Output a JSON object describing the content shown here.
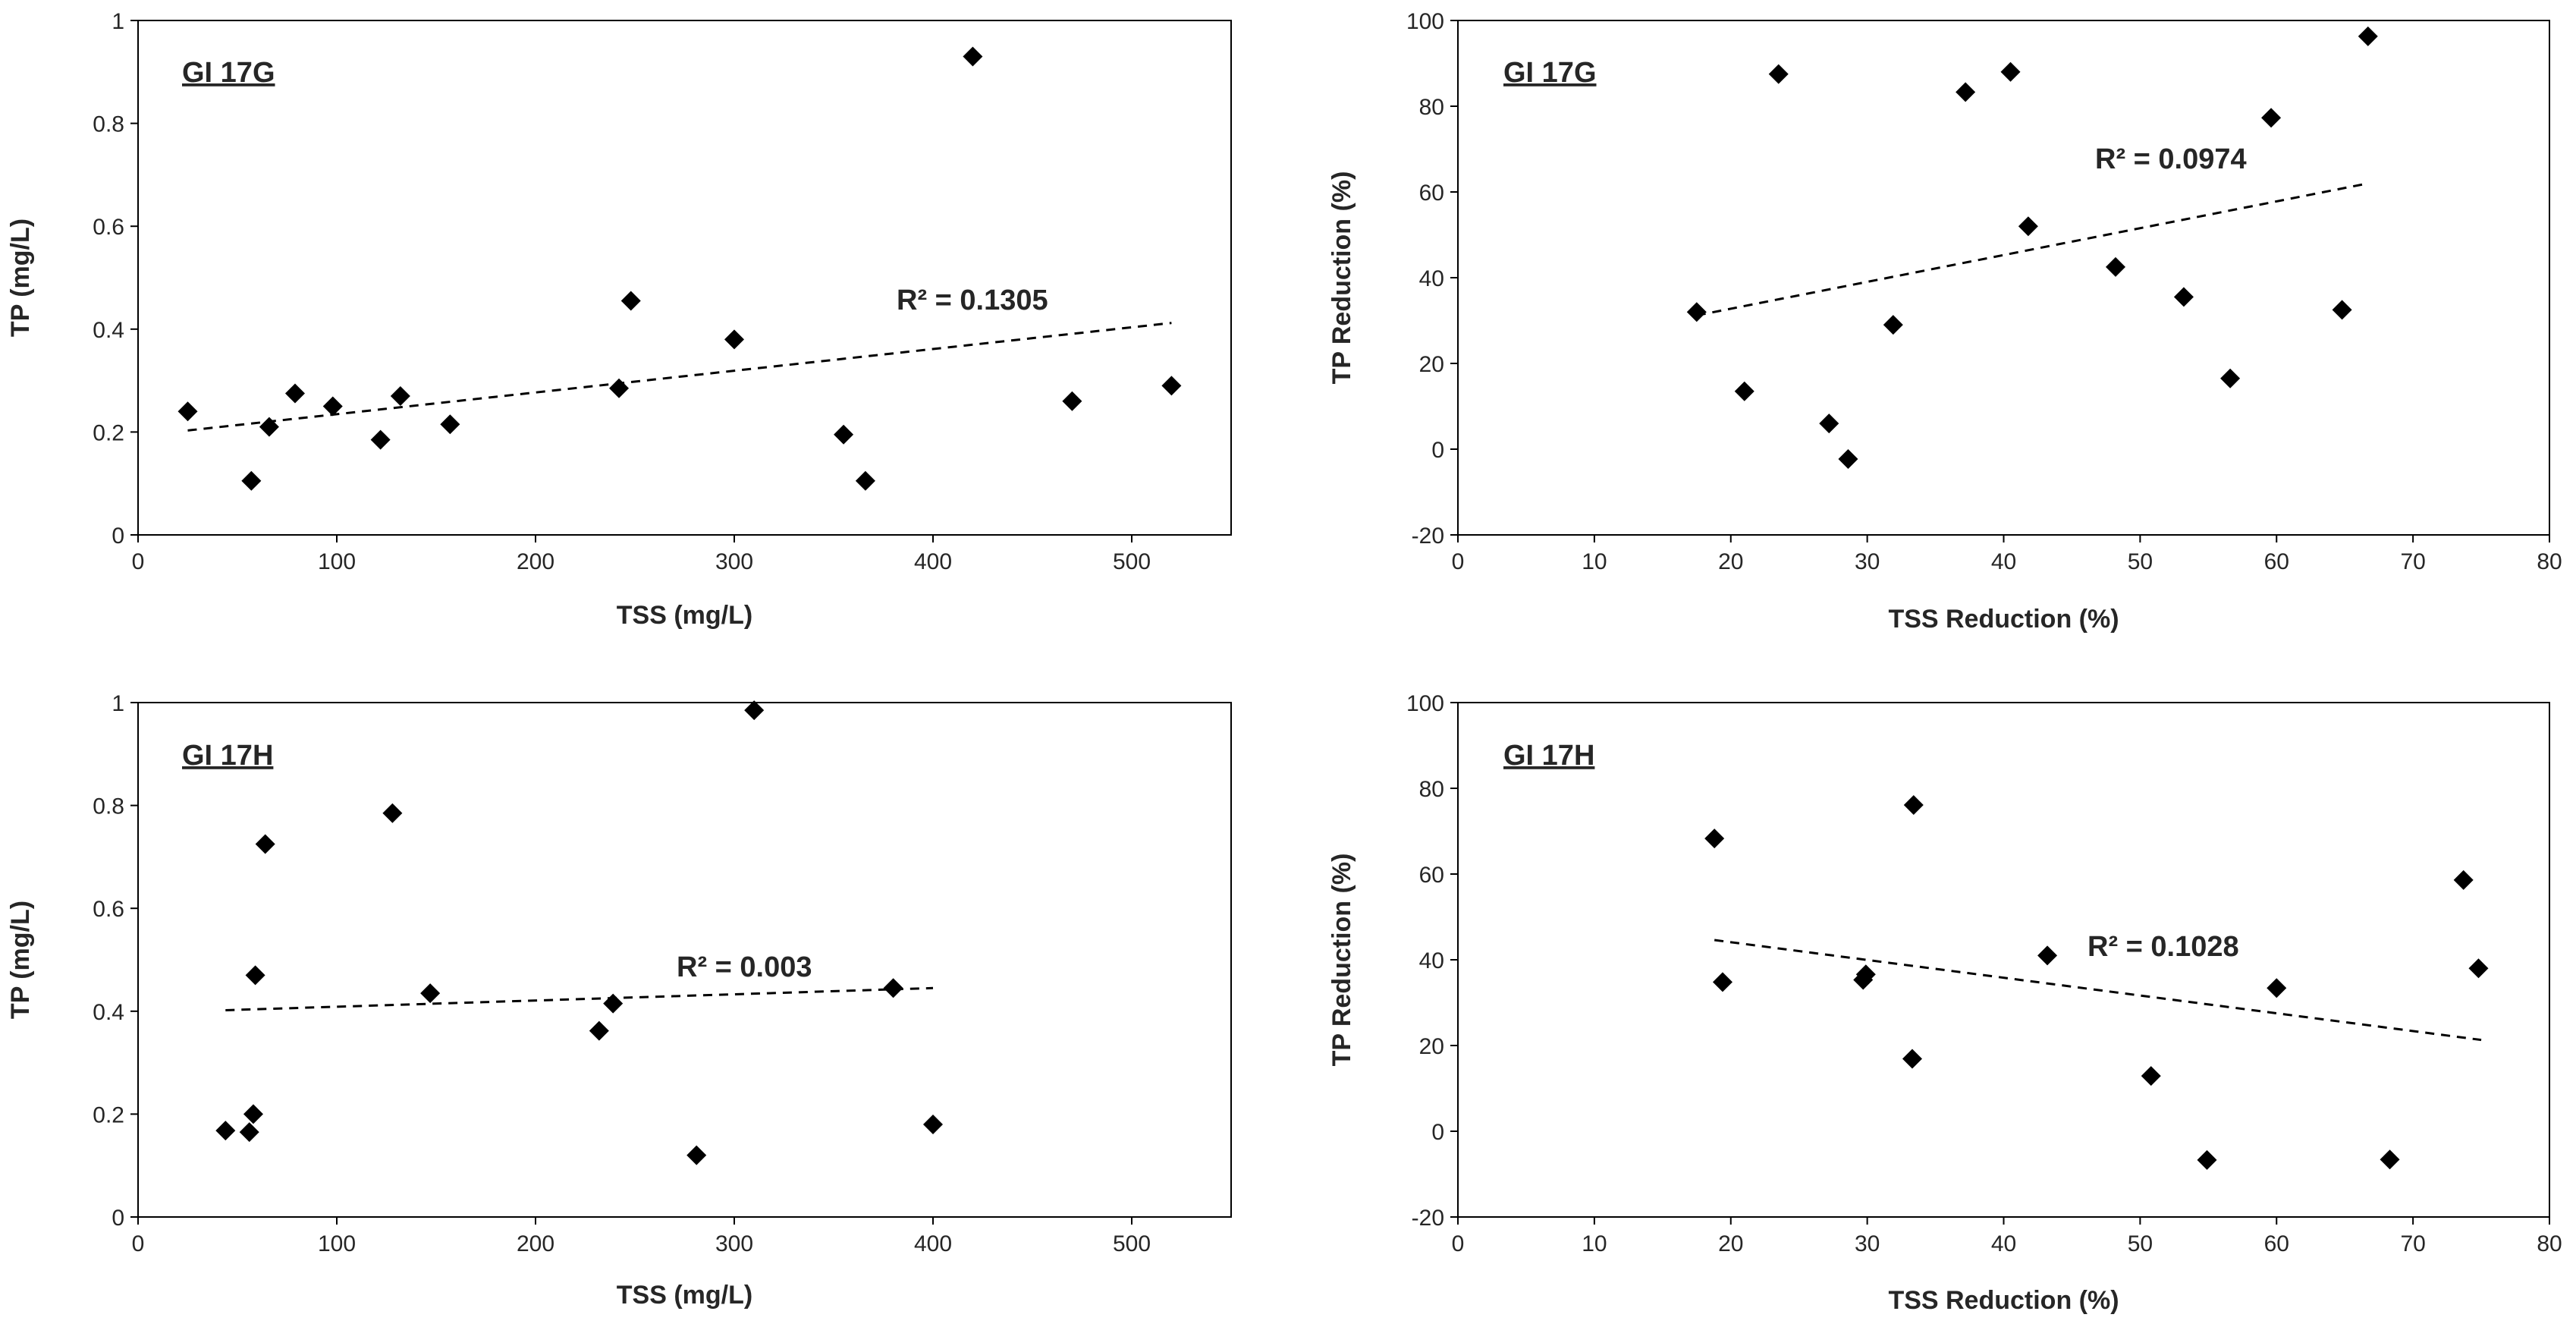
{
  "chart_data": [
    {
      "type": "scatter",
      "title": "GI 17G",
      "xlabel": "TSS (mg/L)",
      "ylabel": "TP (mg/L)",
      "xlim": [
        0,
        550
      ],
      "ylim": [
        0,
        1
      ],
      "xticks": [
        0,
        100,
        200,
        300,
        400,
        500
      ],
      "yticks": [
        0,
        0.2,
        0.4,
        0.6,
        0.8,
        1
      ],
      "ytick_labels": [
        "0",
        "0.2",
        "0.4",
        "0.6",
        "0.8",
        "1"
      ],
      "points": [
        [
          25,
          0.24
        ],
        [
          57,
          0.105
        ],
        [
          66,
          0.21
        ],
        [
          79,
          0.275
        ],
        [
          98,
          0.25
        ],
        [
          122,
          0.185
        ],
        [
          132,
          0.27
        ],
        [
          157,
          0.215
        ],
        [
          242,
          0.285
        ],
        [
          248,
          0.455
        ],
        [
          300,
          0.38
        ],
        [
          355,
          0.195
        ],
        [
          366,
          0.105
        ],
        [
          420,
          0.93
        ],
        [
          470,
          0.26
        ],
        [
          520,
          0.29
        ]
      ],
      "trendline": {
        "x": [
          25,
          520
        ],
        "y": [
          0.203,
          0.412
        ]
      },
      "r2_label": "R² = 0.1305"
    },
    {
      "type": "scatter",
      "title": "GI 17G",
      "xlabel": "TSS Reduction (%)",
      "ylabel": "TP Reduction (%)",
      "xlim": [
        0,
        80
      ],
      "ylim": [
        -20,
        100
      ],
      "xticks": [
        0,
        10,
        20,
        30,
        40,
        50,
        60,
        70,
        80
      ],
      "yticks": [
        -20,
        0,
        20,
        40,
        60,
        80,
        100
      ],
      "ytick_labels": [
        "-20",
        "0",
        "20",
        "40",
        "60",
        "80",
        "100"
      ],
      "points": [
        [
          17.5,
          32
        ],
        [
          21,
          13.5
        ],
        [
          23.5,
          87.5
        ],
        [
          27.2,
          6
        ],
        [
          28.6,
          -2.3
        ],
        [
          31.9,
          29
        ],
        [
          37.2,
          83.3
        ],
        [
          40.5,
          88
        ],
        [
          41.8,
          52
        ],
        [
          48.2,
          42.5
        ],
        [
          53.2,
          35.5
        ],
        [
          56.6,
          16.5
        ],
        [
          59.6,
          77.3
        ],
        [
          64.8,
          32.5
        ],
        [
          66.7,
          96.3
        ]
      ],
      "trendline": {
        "x": [
          17.5,
          66.7
        ],
        "y": [
          31.2,
          62
        ]
      },
      "r2_label": "R² = 0.0974"
    },
    {
      "type": "scatter",
      "title": "GI 17H",
      "xlabel": "TSS (mg/L)",
      "ylabel": "TP (mg/L)",
      "xlim": [
        0,
        550
      ],
      "ylim": [
        0,
        1
      ],
      "xticks": [
        0,
        100,
        200,
        300,
        400,
        500
      ],
      "yticks": [
        0,
        0.2,
        0.4,
        0.6,
        0.8,
        1
      ],
      "ytick_labels": [
        "0",
        "0.2",
        "0.4",
        "0.6",
        "0.8",
        "1"
      ],
      "points": [
        [
          44,
          0.168
        ],
        [
          56,
          0.165
        ],
        [
          58,
          0.2
        ],
        [
          59,
          0.47
        ],
        [
          64,
          0.725
        ],
        [
          128,
          0.785
        ],
        [
          147,
          0.435
        ],
        [
          232,
          0.362
        ],
        [
          239,
          0.415
        ],
        [
          281,
          0.12
        ],
        [
          310,
          0.985
        ],
        [
          380,
          0.445
        ],
        [
          400,
          0.18
        ]
      ],
      "trendline": {
        "x": [
          44,
          400
        ],
        "y": [
          0.402,
          0.445
        ]
      },
      "r2_label": "R² = 0.003"
    },
    {
      "type": "scatter",
      "title": "GI 17H",
      "xlabel": "TSS Reduction (%)",
      "ylabel": "TP Reduction (%)",
      "xlim": [
        0,
        80
      ],
      "ylim": [
        -20,
        100
      ],
      "xticks": [
        0,
        10,
        20,
        30,
        40,
        50,
        60,
        70,
        80
      ],
      "yticks": [
        -20,
        0,
        20,
        40,
        60,
        80,
        100
      ],
      "ytick_labels": [
        "-20",
        "0",
        "20",
        "40",
        "60",
        "80",
        "100"
      ],
      "points": [
        [
          18.8,
          68.3
        ],
        [
          19.4,
          34.8
        ],
        [
          29.7,
          35.3
        ],
        [
          29.9,
          36.6
        ],
        [
          33.3,
          16.9
        ],
        [
          33.4,
          76.1
        ],
        [
          43.2,
          41
        ],
        [
          50.8,
          12.9
        ],
        [
          54.9,
          -6.7
        ],
        [
          60,
          33.4
        ],
        [
          68.3,
          -6.6
        ],
        [
          73.7,
          58.6
        ],
        [
          74.8,
          38
        ]
      ],
      "trendline": {
        "x": [
          18.8,
          75
        ],
        "y": [
          44.6,
          21.3
        ]
      },
      "r2_label": "R² = 0.1028"
    }
  ]
}
